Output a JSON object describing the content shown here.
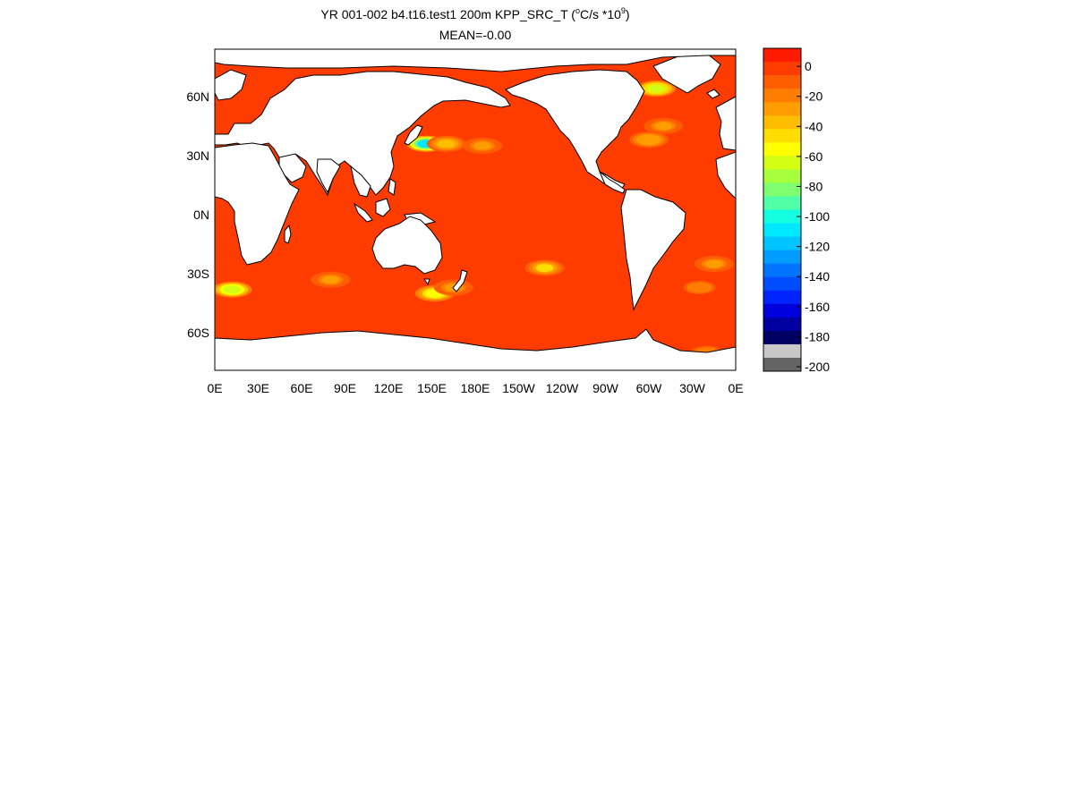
{
  "title": {
    "prefix": "YR 001-002 b4.t16.test1 200m KPP_SRC_T (",
    "deg_sup": "o",
    "units_mid": "C/s *10",
    "exp_sup": "9",
    "suffix": ")"
  },
  "mean_text": "MEAN=-0.00",
  "axes": {
    "lon_ticks": [
      "0E",
      "30E",
      "60E",
      "90E",
      "120E",
      "150E",
      "180E",
      "150W",
      "120W",
      "90W",
      "60W",
      "30W",
      "0E"
    ],
    "lat_ticks": [
      {
        "label": "60N",
        "lat": 60
      },
      {
        "label": "30N",
        "lat": 30
      },
      {
        "label": "0N",
        "lat": 0
      },
      {
        "label": "30S",
        "lat": -30
      },
      {
        "label": "60S",
        "lat": -60
      }
    ],
    "lon_range": [
      0,
      360
    ],
    "lat_range": [
      -79,
      84
    ]
  },
  "colorbar": {
    "colors": [
      "#ff1a00",
      "#ff3c00",
      "#ff5e00",
      "#ff7d00",
      "#ff9c00",
      "#ffbd00",
      "#ffdd00",
      "#ffff00",
      "#d4ff14",
      "#a8ff3c",
      "#80ff70",
      "#50ffa8",
      "#14ffe0",
      "#00e8ff",
      "#00c4ff",
      "#009cff",
      "#0074ff",
      "#004cff",
      "#0024ff",
      "#0000dc",
      "#0000a0",
      "#000064",
      "#c8c8c8",
      "#646464"
    ],
    "labels": [
      "0",
      "-20",
      "-40",
      "-60",
      "-80",
      "-100",
      "-120",
      "-140",
      "-160",
      "-180",
      "-200"
    ],
    "range": [
      12,
      -203
    ],
    "interval": 10
  },
  "chart_data": {
    "type": "heatmap",
    "variable": "KPP_SRC_T",
    "depth": "200m",
    "case": "b4.t16.test1",
    "years": "YR 001-002",
    "units": "°C/s *10^9",
    "mean": -0.0,
    "background_value": 0,
    "anomalies": [
      {
        "lon": 146,
        "lat": 36,
        "value": -150
      },
      {
        "lon": 160,
        "lat": 36,
        "value": -55
      },
      {
        "lon": 185,
        "lat": 35,
        "value": -40
      },
      {
        "lon": 300,
        "lat": 38,
        "value": -45
      },
      {
        "lon": 310,
        "lat": 45,
        "value": -40
      },
      {
        "lon": 305,
        "lat": 64,
        "value": -90
      },
      {
        "lon": 12,
        "lat": -38,
        "value": -95
      },
      {
        "lon": 80,
        "lat": -33,
        "value": -35
      },
      {
        "lon": 152,
        "lat": -40,
        "value": -80
      },
      {
        "lon": 165,
        "lat": -37,
        "value": -40
      },
      {
        "lon": 228,
        "lat": -27,
        "value": -60
      },
      {
        "lon": 335,
        "lat": -37,
        "value": -30
      },
      {
        "lon": 345,
        "lat": -25,
        "value": -35
      },
      {
        "lon": 340,
        "lat": -70,
        "value": -30
      }
    ]
  }
}
